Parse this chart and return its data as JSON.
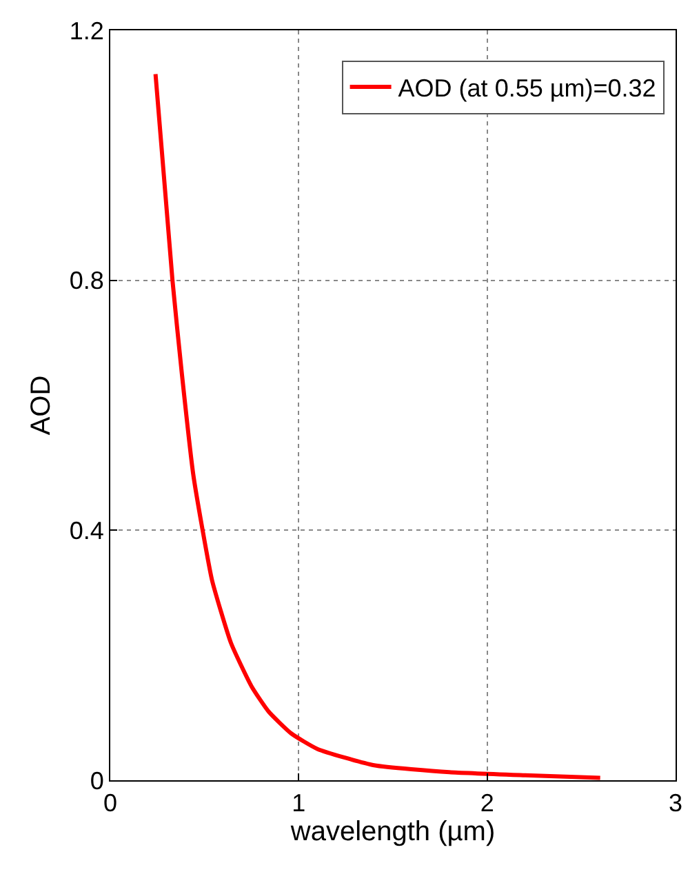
{
  "chart_data": {
    "type": "line",
    "xlabel": "wavelength (µm)",
    "ylabel": "AOD",
    "x": [
      0.24,
      0.33,
      0.38,
      0.44,
      0.49,
      0.54,
      0.64,
      0.75,
      0.84,
      0.96,
      1.1,
      1.4,
      1.8,
      2.2,
      2.6
    ],
    "series": [
      {
        "name": "AOD (at 0.55 µm)=0.32",
        "color": "#ff0000",
        "values": [
          1.13,
          0.8,
          0.65,
          0.49,
          0.4,
          0.32,
          0.22,
          0.15,
          0.11,
          0.075,
          0.05,
          0.024,
          0.013,
          0.008,
          0.004
        ]
      }
    ],
    "xlim": [
      0,
      3
    ],
    "xticks": [
      0,
      1,
      2,
      3
    ],
    "ylim": [
      0,
      1.2
    ],
    "yticks": [
      0,
      0.4,
      0.8,
      1.2
    ],
    "grid": true,
    "legend": "top right",
    "marker": "none",
    "line_style": "solid"
  }
}
